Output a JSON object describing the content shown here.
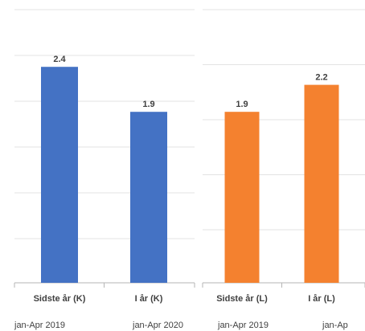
{
  "chart_data": [
    {
      "type": "bar",
      "categories": [
        "Sidste år (K)",
        "I år (K)"
      ],
      "periods": [
        "jan-Apr 2019",
        "jan-Apr 2020"
      ],
      "values": [
        2.4,
        1.9
      ],
      "data_labels": [
        "2.4",
        "1.9"
      ],
      "color": "#4472c4",
      "grid": true,
      "legend": "none"
    },
    {
      "type": "bar",
      "categories": [
        "Sidste år (L)",
        "I år (L)"
      ],
      "periods": [
        "jan-Apr 2019",
        "jan-Ap"
      ],
      "values": [
        1.9,
        2.2
      ],
      "data_labels": [
        "1.9",
        "2.2"
      ],
      "color": "#f4812f",
      "grid": true,
      "legend": "none"
    }
  ]
}
